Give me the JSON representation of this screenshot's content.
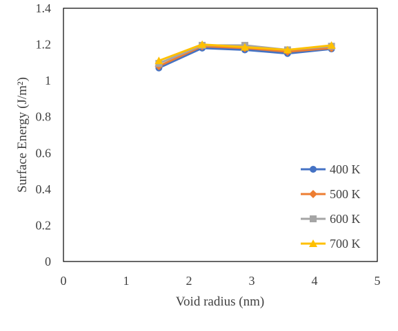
{
  "chart_data": {
    "type": "line",
    "xlabel": "Void radius (nm)",
    "ylabel": "Surface Energy (J/m²)",
    "xlim": [
      0,
      5
    ],
    "ylim": [
      0,
      1.4
    ],
    "x_ticks": [
      "0",
      "1",
      "2",
      "3",
      "4",
      "5"
    ],
    "y_ticks": [
      "0",
      "0.2",
      "0.4",
      "0.6",
      "0.8",
      "1",
      "1.2",
      "1.4"
    ],
    "grid": false,
    "legend_position": "bottom-right",
    "series": [
      {
        "name": "400 K",
        "color": "#4472c4",
        "marker": "circle",
        "x": [
          1.52,
          2.21,
          2.89,
          3.57,
          4.27
        ],
        "y": [
          1.07,
          1.18,
          1.17,
          1.15,
          1.175
        ]
      },
      {
        "name": "500 K",
        "color": "#ed7d31",
        "marker": "diamond",
        "x": [
          1.52,
          2.21,
          2.89,
          3.57,
          4.27
        ],
        "y": [
          1.08,
          1.19,
          1.18,
          1.16,
          1.18
        ]
      },
      {
        "name": "600 K",
        "color": "#a5a5a5",
        "marker": "square",
        "x": [
          1.52,
          2.21,
          2.89,
          3.57,
          4.27
        ],
        "y": [
          1.095,
          1.195,
          1.195,
          1.17,
          1.19
        ]
      },
      {
        "name": "700 K",
        "color": "#ffc000",
        "marker": "triangle",
        "x": [
          1.52,
          2.21,
          2.89,
          3.57,
          4.27
        ],
        "y": [
          1.11,
          1.2,
          1.185,
          1.17,
          1.195
        ]
      }
    ]
  }
}
